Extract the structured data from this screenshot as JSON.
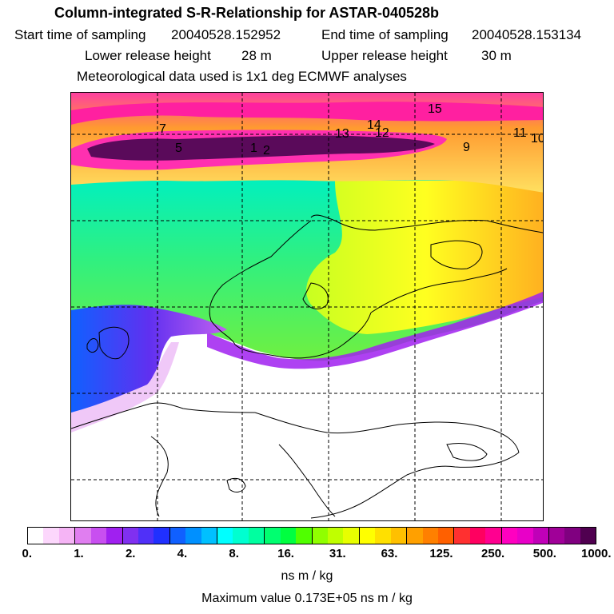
{
  "header": {
    "title": "Column-integrated S-R-Relationship for ASTAR-040528b",
    "start_label": "Start time of sampling",
    "start_value": "20040528.152952",
    "end_label": "End time of sampling",
    "end_value": "20040528.153134",
    "lower_label": "Lower release height",
    "lower_value": "28 m",
    "upper_label": "Upper release height",
    "upper_value": "30 m",
    "met_line": "Meteorological data used is 1x1 deg ECMWF analyses"
  },
  "map": {
    "point_labels": [
      "1",
      "2",
      "5",
      "7",
      "9",
      "10",
      "11",
      "12",
      "13",
      "14",
      "15"
    ]
  },
  "colorbar": {
    "tick_labels": [
      "0.",
      "1.",
      "2.",
      "4.",
      "8.",
      "16.",
      "31.",
      "63.",
      "125.",
      "250.",
      "500.",
      "1000."
    ],
    "colors": [
      "#ffffff",
      "#fcd7fc",
      "#f5b4f5",
      "#e07ef0",
      "#c84ff0",
      "#a020f0",
      "#8030f0",
      "#5030f8",
      "#2030ff",
      "#1060ff",
      "#0090ff",
      "#00c0ff",
      "#00ffff",
      "#00ffd0",
      "#00ffa0",
      "#00ff70",
      "#00ff40",
      "#50ff00",
      "#90ff00",
      "#c0ff00",
      "#e8ff00",
      "#ffff00",
      "#ffe000",
      "#ffc000",
      "#ffa000",
      "#ff8000",
      "#ff6000",
      "#ff3030",
      "#ff0060",
      "#ff0090",
      "#ff00c0",
      "#e800c8",
      "#c000b8",
      "#a00098",
      "#800080",
      "#500050"
    ]
  },
  "unit_label": "ns m / kg",
  "max_label": "Maximum value  0.173E+05 ns m / kg"
}
